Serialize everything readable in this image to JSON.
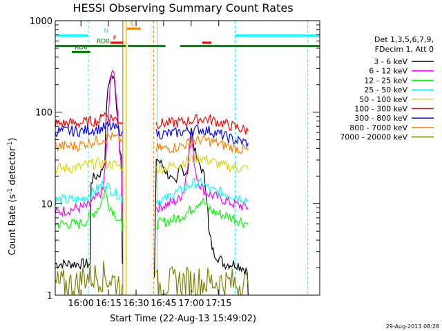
{
  "chart_data": {
    "type": "line",
    "title": "HESSI Observing Summary Count Rates",
    "xlabel": "Start Time (22-Aug-13 15:49:02)",
    "ylabel": "Count Rate (s⁻¹ detector⁻¹)",
    "ylabel_main": "Count Rate (s",
    "ylabel_exp1": "-1",
    "ylabel_mid": " detector",
    "ylabel_exp2": "-1",
    "ylabel_end": ")",
    "yscale": "log",
    "ylim": [
      1,
      1000
    ],
    "xlim": [
      -7,
      137
    ],
    "x_unit": "minutes since 15:53",
    "x_ticks": [
      {
        "t": 7,
        "label": "16:00"
      },
      {
        "t": 22,
        "label": "16:15"
      },
      {
        "t": 37,
        "label": "16:30"
      },
      {
        "t": 52,
        "label": "16:45"
      },
      {
        "t": 67,
        "label": "17:00"
      },
      {
        "t": 82,
        "label": "17:15"
      }
    ],
    "y_ticks": [
      {
        "v": 1,
        "label": "1"
      },
      {
        "v": 10,
        "label": "10"
      },
      {
        "v": 100,
        "label": "100"
      },
      {
        "v": 1000,
        "label": "1000"
      }
    ],
    "legend": {
      "header1": "Det 1,3,5,6,7,9,",
      "header2": "FDecim 1, Att 0",
      "placement": "right"
    },
    "series": [
      {
        "name": "3 - 6 keV",
        "color": "#000000",
        "x": [
          -7,
          12,
          12.5,
          18,
          20,
          21,
          23,
          25,
          27,
          28,
          29,
          29.5
        ],
        "y": [
          2.2,
          2.2,
          18,
          22,
          30,
          130,
          260,
          230,
          90,
          45,
          35,
          2.2
        ],
        "x2": [
          47,
          48,
          52,
          55,
          57,
          59,
          61,
          63,
          65,
          66,
          67,
          68,
          70,
          72,
          74,
          76,
          76.5,
          79,
          85,
          92,
          95,
          97.5,
          98
        ],
        "y2": [
          1.5,
          32,
          25,
          20,
          17,
          16,
          30,
          22,
          20,
          40,
          70,
          50,
          30,
          26,
          20,
          10,
          5,
          3,
          2.2,
          2.2,
          2.0,
          1.8,
          1.0
        ]
      },
      {
        "name": "6 - 12 keV",
        "color": "#ff00ff",
        "x": [
          -7,
          12,
          12.5,
          19,
          21,
          23,
          25,
          27,
          28,
          29,
          29.5
        ],
        "y": [
          8,
          9.5,
          10,
          14,
          40,
          220,
          300,
          90,
          40,
          25,
          8
        ],
        "x2": [
          48,
          55,
          60,
          63,
          65,
          66,
          67,
          68,
          70,
          72,
          74,
          76,
          80,
          90,
          98
        ],
        "y2": [
          9,
          10,
          11,
          14,
          25,
          45,
          60,
          35,
          20,
          16,
          14,
          13,
          12,
          10,
          9
        ]
      },
      {
        "name": "12 - 25 keV",
        "color": "#00ff00",
        "x": [
          -7,
          6,
          10,
          14,
          18,
          20,
          22,
          25,
          27,
          29,
          29.5
        ],
        "y": [
          6,
          6,
          6.5,
          8,
          10,
          14,
          10,
          8,
          7,
          6,
          5
        ],
        "x2": [
          48,
          55,
          60,
          65,
          68,
          70,
          73,
          76,
          80,
          90,
          98
        ],
        "y2": [
          6,
          6.5,
          7,
          8,
          9,
          10,
          11,
          9,
          8,
          7,
          6
        ]
      },
      {
        "name": "25 - 50 keV",
        "color": "#00ffff",
        "x": [
          -7,
          6,
          10,
          15,
          18,
          20,
          22,
          26,
          29,
          29.5
        ],
        "y": [
          11,
          11,
          12,
          14,
          16,
          17,
          15,
          13,
          12,
          11
        ],
        "x2": [
          48,
          53,
          55,
          58,
          62,
          66,
          70,
          74,
          78,
          85,
          92,
          98
        ],
        "y2": [
          11,
          11,
          12,
          13,
          14,
          16,
          17,
          16,
          14,
          13,
          12,
          11
        ]
      },
      {
        "name": "50 - 100 keV",
        "color": "#d8d800",
        "x": [
          -7,
          6,
          12,
          18,
          24,
          29.5
        ],
        "y": [
          24,
          25,
          27,
          28,
          27,
          25
        ],
        "x2": [
          48,
          54,
          60,
          66,
          72,
          78,
          84,
          90,
          98
        ],
        "y2": [
          24,
          25,
          27,
          30,
          32,
          29,
          26,
          25,
          24
        ]
      },
      {
        "name": "100 - 300 keV",
        "color": "#ff0000",
        "x": [
          -7,
          6,
          10,
          14,
          17.5,
          18,
          22,
          27,
          29.5
        ],
        "y": [
          75,
          76,
          78,
          80,
          80,
          100,
          90,
          82,
          78
        ],
        "x2": [
          48,
          55,
          62,
          68,
          72,
          76,
          82,
          90,
          98
        ],
        "y2": [
          75,
          76,
          78,
          82,
          85,
          84,
          78,
          70,
          62
        ]
      },
      {
        "name": "300 - 800 keV",
        "color": "#0000ff",
        "x": [
          -7,
          6,
          10,
          14,
          18,
          22,
          26,
          29.5
        ],
        "y": [
          62,
          62,
          63,
          65,
          66,
          70,
          66,
          62
        ],
        "x2": [
          48,
          54,
          60,
          66,
          72,
          78,
          84,
          90,
          98
        ],
        "y2": [
          58,
          58,
          60,
          63,
          65,
          62,
          56,
          50,
          46
        ]
      },
      {
        "name": "800 - 7000 keV",
        "color": "#ff8000",
        "x": [
          -7,
          6,
          10,
          14,
          18,
          22,
          26,
          29.5
        ],
        "y": [
          42,
          43,
          46,
          48,
          50,
          55,
          52,
          48
        ],
        "x2": [
          48,
          54,
          60,
          66,
          72,
          78,
          84,
          90,
          98
        ],
        "y2": [
          40,
          40,
          42,
          46,
          50,
          48,
          44,
          41,
          38
        ]
      },
      {
        "name": "7000 - 20000 keV",
        "color": "#808000",
        "x": [
          -7,
          6,
          8,
          20,
          29.5
        ],
        "y": [
          1.3,
          1.3,
          1.6,
          1.6,
          1.3
        ],
        "x2": [
          48,
          60,
          80,
          98
        ],
        "y2": [
          1.3,
          1.4,
          1.4,
          1.3
        ]
      }
    ],
    "flag_bars": [
      {
        "label": "N",
        "color": "#00ffff",
        "y": 690,
        "segments": [
          [
            -7,
            11
          ],
          [
            91,
            137
          ]
        ]
      },
      {
        "label": "F",
        "color": "#ff0000",
        "y": 575,
        "segments": [
          [
            23,
            30
          ],
          [
            73,
            78
          ]
        ]
      },
      {
        "label": "S",
        "color": "#ff8000",
        "y": 820,
        "segments": [
          [
            32,
            39.5
          ]
        ]
      },
      {
        "label": "RD0",
        "color": "#008000",
        "y": 530,
        "segments": [
          [
            -7,
            31.5
          ],
          [
            32.5,
            53
          ],
          [
            61,
            137
          ]
        ]
      },
      {
        "label": "RD6",
        "color": "#008000",
        "y": 455,
        "segments": [
          [
            2,
            12
          ]
        ]
      }
    ],
    "footnote": "29-Aug-2013 08:28"
  }
}
